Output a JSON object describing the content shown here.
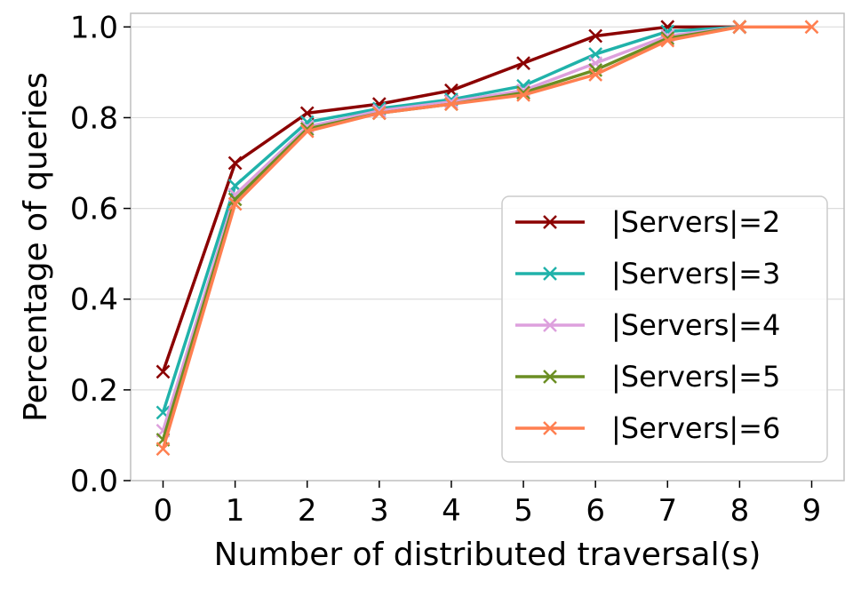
{
  "chart_data": {
    "type": "line",
    "title": "",
    "xlabel": "Number of distributed traversal(s)",
    "ylabel": "Percentage of queries",
    "x": [
      0,
      1,
      2,
      3,
      4,
      5,
      6,
      7,
      8,
      9
    ],
    "xlim": [
      -0.45,
      9.45
    ],
    "ylim": [
      0,
      1.03
    ],
    "xticks": [
      "0",
      "1",
      "2",
      "3",
      "4",
      "5",
      "6",
      "7",
      "8",
      "9"
    ],
    "yticks": [
      "0.0",
      "0.2",
      "0.4",
      "0.6",
      "0.8",
      "1.0"
    ],
    "grid": "horizontal",
    "legend_position": "lower-right",
    "marker": "x",
    "series": [
      {
        "name": "|Servers|=2",
        "color": "#8b0000",
        "values": [
          0.24,
          0.7,
          0.81,
          0.83,
          0.86,
          0.92,
          0.98,
          1.0,
          1.0,
          null
        ]
      },
      {
        "name": "|Servers|=3",
        "color": "#20b2aa",
        "values": [
          0.15,
          0.65,
          0.79,
          0.82,
          0.84,
          0.87,
          0.94,
          0.99,
          1.0,
          null
        ]
      },
      {
        "name": "|Servers|=4",
        "color": "#dda0dd",
        "values": [
          0.11,
          0.63,
          0.78,
          0.815,
          0.835,
          0.86,
          0.92,
          0.98,
          1.0,
          null
        ]
      },
      {
        "name": "|Servers|=5",
        "color": "#6b8e23",
        "values": [
          0.09,
          0.62,
          0.775,
          0.81,
          0.83,
          0.855,
          0.905,
          0.975,
          1.0,
          null
        ]
      },
      {
        "name": "|Servers|=6",
        "color": "#ff7f50",
        "values": [
          0.07,
          0.61,
          0.77,
          0.81,
          0.83,
          0.85,
          0.895,
          0.97,
          1.0,
          1.0
        ]
      }
    ]
  }
}
